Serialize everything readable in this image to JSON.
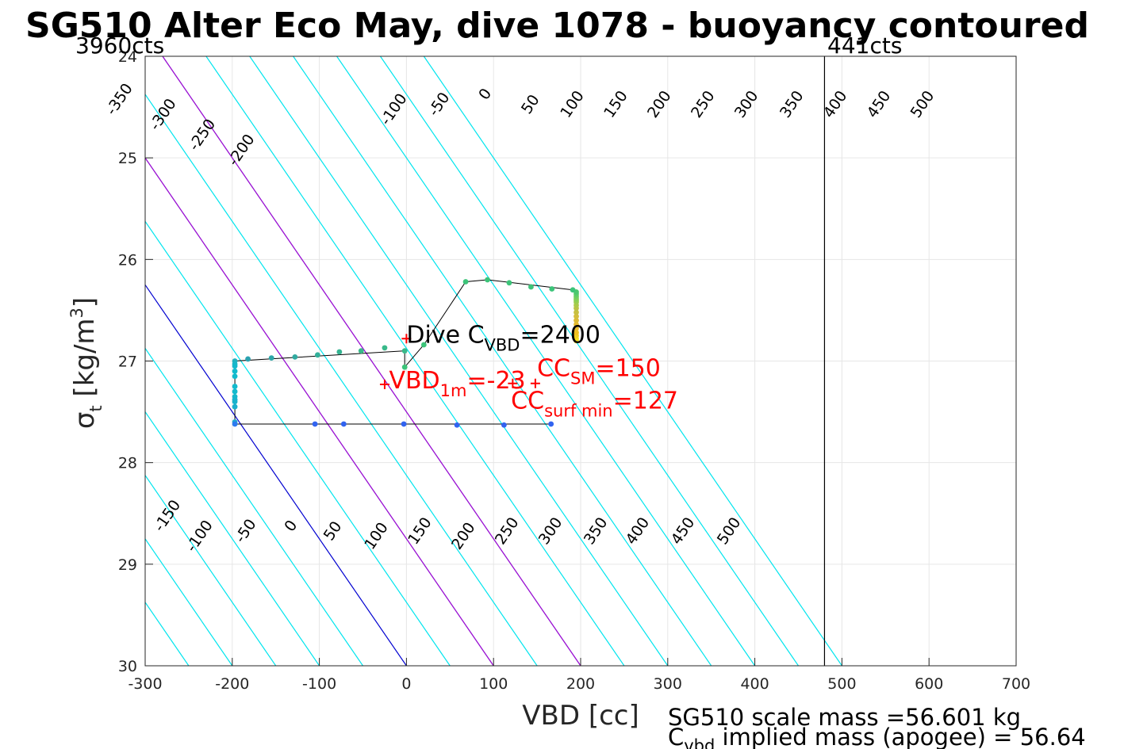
{
  "chart_data": {
    "type": "scatter",
    "title": "SG510 Alter Eco May, dive 1078 - buoyancy contoured",
    "xlabel": "VBD [cc]",
    "ylabel": {
      "base": "σ",
      "sub": "t",
      "units_pre": " [kg/m",
      "units_sup": "3",
      "units_post": "]"
    },
    "xlim": [
      -300,
      700
    ],
    "ylim": [
      24,
      30
    ],
    "y_reversed": true,
    "grid": true,
    "x_ticks": [
      -300,
      -200,
      -100,
      0,
      100,
      200,
      300,
      400,
      500,
      600,
      700
    ],
    "x_tick_labels": [
      "-300",
      "-200",
      "-100",
      "0",
      "100",
      "200",
      "300",
      "400",
      "500",
      "600",
      "700"
    ],
    "y_ticks": [
      24,
      25,
      26,
      27,
      28,
      29,
      30
    ],
    "y_tick_labels": [
      "24",
      "25",
      "26",
      "27",
      "28",
      "29",
      "30"
    ],
    "contours": {
      "slope_vbd_per_sigma": 80,
      "reference_sigma": 30,
      "cyan_levels": [
        -350,
        -300,
        -250,
        -200,
        -150,
        -100,
        -50,
        50,
        100,
        150,
        200,
        250,
        300,
        350,
        400,
        450,
        500
      ],
      "zero_level": 0,
      "magenta_levels": [
        100,
        200
      ],
      "colors": {
        "cyan": "#00e5ee",
        "zero": "#0000d0",
        "magenta": "#b000d0"
      },
      "top_labels": [
        {
          "text": "-350",
          "vbd": -325,
          "sigma": 24.45
        },
        {
          "text": "-300",
          "vbd": -275,
          "sigma": 24.6
        },
        {
          "text": "-250",
          "vbd": -230,
          "sigma": 24.8
        },
        {
          "text": "-200",
          "vbd": -185,
          "sigma": 24.95
        },
        {
          "text": "-100",
          "vbd": -10,
          "sigma": 24.55
        },
        {
          "text": "-50",
          "vbd": 42,
          "sigma": 24.5
        },
        {
          "text": "0",
          "vbd": 95,
          "sigma": 24.4
        },
        {
          "text": "50",
          "vbd": 147,
          "sigma": 24.5
        },
        {
          "text": "100",
          "vbd": 195,
          "sigma": 24.5
        },
        {
          "text": "150",
          "vbd": 245,
          "sigma": 24.5
        },
        {
          "text": "200",
          "vbd": 295,
          "sigma": 24.5
        },
        {
          "text": "250",
          "vbd": 345,
          "sigma": 24.5
        },
        {
          "text": "300",
          "vbd": 395,
          "sigma": 24.5
        },
        {
          "text": "350",
          "vbd": 447,
          "sigma": 24.5
        },
        {
          "text": "400",
          "vbd": 497,
          "sigma": 24.5
        },
        {
          "text": "450",
          "vbd": 547,
          "sigma": 24.5
        },
        {
          "text": "500",
          "vbd": 597,
          "sigma": 24.5
        }
      ],
      "bottom_labels": [
        {
          "text": "-150",
          "vbd": -270,
          "sigma": 28.55
        },
        {
          "text": "-100",
          "vbd": -233,
          "sigma": 28.75
        },
        {
          "text": "-50",
          "vbd": -180,
          "sigma": 28.7
        },
        {
          "text": "0",
          "vbd": -128,
          "sigma": 28.65
        },
        {
          "text": "50",
          "vbd": -80,
          "sigma": 28.7
        },
        {
          "text": "100",
          "vbd": -30,
          "sigma": 28.75
        },
        {
          "text": "150",
          "vbd": 20,
          "sigma": 28.7
        },
        {
          "text": "200",
          "vbd": 70,
          "sigma": 28.75
        },
        {
          "text": "250",
          "vbd": 120,
          "sigma": 28.7
        },
        {
          "text": "300",
          "vbd": 170,
          "sigma": 28.7
        },
        {
          "text": "350",
          "vbd": 222,
          "sigma": 28.7
        },
        {
          "text": "400",
          "vbd": 270,
          "sigma": 28.7
        },
        {
          "text": "450",
          "vbd": 322,
          "sigma": 28.7
        },
        {
          "text": "500",
          "vbd": 375,
          "sigma": 28.7
        }
      ]
    },
    "vertical_line": {
      "vbd": 480,
      "label_left": "3960cts",
      "label_right": "441cts"
    },
    "series": [
      {
        "vbd": [
          195,
          195,
          195,
          195,
          195,
          195,
          195,
          195,
          195,
          195,
          195,
          195,
          195,
          195,
          195,
          195,
          195
        ],
        "sigma": [
          26.8,
          26.78,
          26.75,
          26.72,
          26.68,
          26.64,
          26.6,
          26.56,
          26.52,
          26.48,
          26.45,
          26.42,
          26.4,
          26.38,
          26.36,
          26.34,
          26.32
        ],
        "colors": [
          "#f5e21c",
          "#f5e21c",
          "#f0d020",
          "#f0c020",
          "#ecc030",
          "#e6bb30",
          "#ddbb35",
          "#d4be3c",
          "#c8c040",
          "#bcc244",
          "#aec848",
          "#9fcc4c",
          "#8ecf52",
          "#7fd05a",
          "#6ccf62",
          "#5ccd68",
          "#4cc86e"
        ]
      },
      {
        "vbd": [
          191,
          167,
          143,
          118,
          93,
          68,
          20,
          -2
        ],
        "sigma": [
          26.3,
          26.29,
          26.27,
          26.23,
          26.2,
          26.22,
          26.84,
          27.06
        ],
        "colors": [
          "#3cc479",
          "#3cc479",
          "#3cc479",
          "#3cc479",
          "#3cc479",
          "#3cc479",
          "#3cc479",
          "#3cc479"
        ]
      },
      {
        "vbd": [
          -2,
          -25,
          -52,
          -77,
          -102,
          -128,
          -155,
          -182,
          -197,
          -197
        ],
        "sigma": [
          26.9,
          26.87,
          26.9,
          26.91,
          26.94,
          26.96,
          26.97,
          26.98,
          27.0,
          27.03
        ],
        "colors": [
          "#39b98a",
          "#39b98a",
          "#39b98a",
          "#36b492",
          "#33b09a",
          "#31aaa0",
          "#2ea6a8",
          "#2aa2b0",
          "#21b1c0",
          "#1ab6c8"
        ]
      },
      {
        "vbd": [
          -197,
          -197,
          -197,
          -197,
          -197,
          -197,
          -197,
          -197,
          -197,
          -197
        ],
        "sigma": [
          27.05,
          27.1,
          27.15,
          27.25,
          27.3,
          27.35,
          27.38,
          27.4,
          27.45,
          27.6
        ],
        "colors": [
          "#14b8cc",
          "#12bacd",
          "#12bacd",
          "#12bacd",
          "#12bacd",
          "#14b8cc",
          "#16b4cc",
          "#18b2cc",
          "#1bafcd",
          "#22a8d0"
        ]
      },
      {
        "vbd": [
          -197,
          -105,
          -72,
          -3,
          58,
          112,
          166
        ],
        "sigma": [
          27.62,
          27.62,
          27.62,
          27.62,
          27.63,
          27.63,
          27.62
        ],
        "colors": [
          "#2d7bf0",
          "#3163f0",
          "#3163f0",
          "#3163f0",
          "#3163f0",
          "#3163f0",
          "#3163f0"
        ]
      }
    ],
    "path": {
      "vbd": [
        166,
        -197,
        -197,
        -2,
        -2,
        20,
        68,
        93,
        191,
        195
      ],
      "sigma": [
        27.62,
        27.62,
        27.0,
        26.9,
        27.06,
        26.84,
        26.22,
        26.2,
        26.3,
        26.32
      ]
    },
    "markers": [
      {
        "vbd": 0,
        "sigma": 26.78
      },
      {
        "vbd": -25,
        "sigma": 27.23
      },
      {
        "vbd": 122,
        "sigma": 27.22
      },
      {
        "vbd": 148,
        "sigma": 27.22
      }
    ],
    "annotations": {
      "dive_cvbd": {
        "pre": "Dive C",
        "sub": "VBD",
        "post": "=2400",
        "vbd": 0,
        "sigma": 26.82
      },
      "vbd_1m": {
        "pre": "VBD",
        "sub": "1m",
        "post": "=-23",
        "vbd": -20,
        "sigma": 27.27
      },
      "cc_sm": {
        "pre": "CC",
        "sub": "SM",
        "post": "=150",
        "vbd": 150,
        "sigma": 27.15
      },
      "cc_surf": {
        "pre": "CC",
        "sub": "surf min",
        "post": "=127",
        "vbd": 120,
        "sigma": 27.47
      }
    },
    "notes": {
      "scale_mass": "SG510 scale mass =56.601 kg",
      "implied_pre": "C",
      "implied_sub": "vbd",
      "implied_post": " implied mass (apogee) = 56.64"
    }
  }
}
